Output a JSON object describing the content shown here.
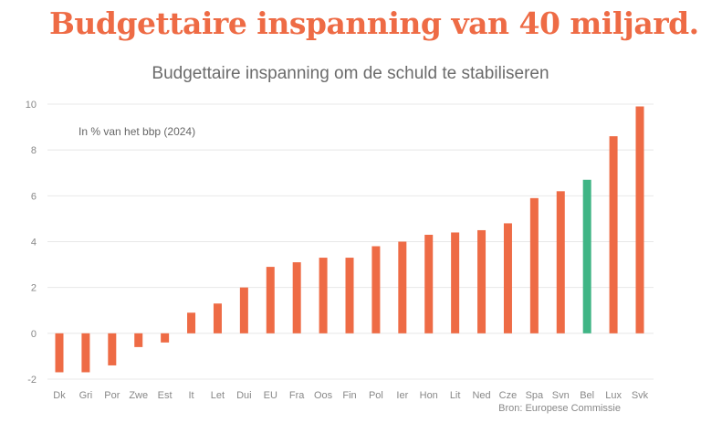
{
  "headline": "Budgettaire inspanning van 40 miljard...",
  "colors": {
    "default": "#ee6b45",
    "highlight": "#3fb585",
    "grid": "#e8e8e8"
  },
  "chart_data": {
    "type": "bar",
    "title": "Budgettaire inspanning om de schuld te stabiliseren",
    "unit_label": "In % van het bbp (2024)",
    "categories": [
      "Dk",
      "Gri",
      "Por",
      "Zwe",
      "Est",
      "It",
      "Let",
      "Dui",
      "EU",
      "Fra",
      "Oos",
      "Fin",
      "Pol",
      "Ier",
      "Hon",
      "Lit",
      "Ned",
      "Cze",
      "Spa",
      "Svn",
      "Bel",
      "Lux",
      "Svk"
    ],
    "values": [
      -1.7,
      -1.7,
      -1.4,
      -0.6,
      -0.4,
      0.9,
      1.3,
      2.0,
      2.9,
      3.1,
      3.3,
      3.3,
      3.8,
      4.0,
      4.3,
      4.4,
      4.5,
      4.8,
      5.9,
      6.2,
      6.7,
      8.6,
      9.9
    ],
    "highlight": "Bel",
    "ylim": [
      -2,
      10
    ],
    "yticks": [
      -2,
      0,
      2,
      4,
      6,
      8,
      10
    ],
    "grid": true,
    "source": "Bron: Europese Commissie"
  }
}
